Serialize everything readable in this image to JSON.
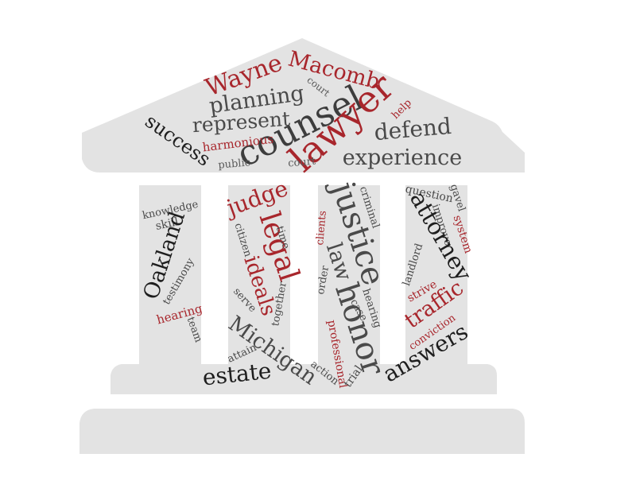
{
  "colors": {
    "building": "#e3e3e3",
    "dark_word": "#3d3d3d",
    "black_word": "#1e1e1e",
    "red_word": "#a8262c",
    "gray_word": "#5a5a5a"
  },
  "words": {
    "wayne": "Wayne",
    "macomb": "Macomb",
    "court_top": "court",
    "planning": "planning",
    "help": "help",
    "counsel": "counsel",
    "lawyer": "lawyer",
    "represent": "represent",
    "defend": "defend",
    "success": "success",
    "harmonious": "harmonious",
    "public": "public",
    "court_mid": "court",
    "experience": "experience",
    "knowledge": "knowledge",
    "skill": "skill",
    "oakland": "Oakland",
    "testimony": "testimony",
    "hearing_left": "hearing",
    "team": "team",
    "judge": "judge",
    "legal": "legal",
    "citizen": "citizen",
    "time": "time",
    "ideals": "ideals",
    "serve": "serve",
    "together": "together",
    "michigan": "Michigan",
    "attain": "attain",
    "estate": "estate",
    "justice": "justice",
    "criminal": "criminal",
    "clients": "clients",
    "law": "law",
    "order": "order",
    "honor": "honor",
    "case": "case",
    "hearing_right": "hearing",
    "professional": "professional",
    "action": "action",
    "trial": "trial",
    "question": "question",
    "gavel": "gavel",
    "improve": "improve",
    "system": "system",
    "attorney": "attorney",
    "landlord": "landlord",
    "strive": "strive",
    "traffic": "traffic",
    "conviction": "conviction",
    "answers": "answers"
  }
}
